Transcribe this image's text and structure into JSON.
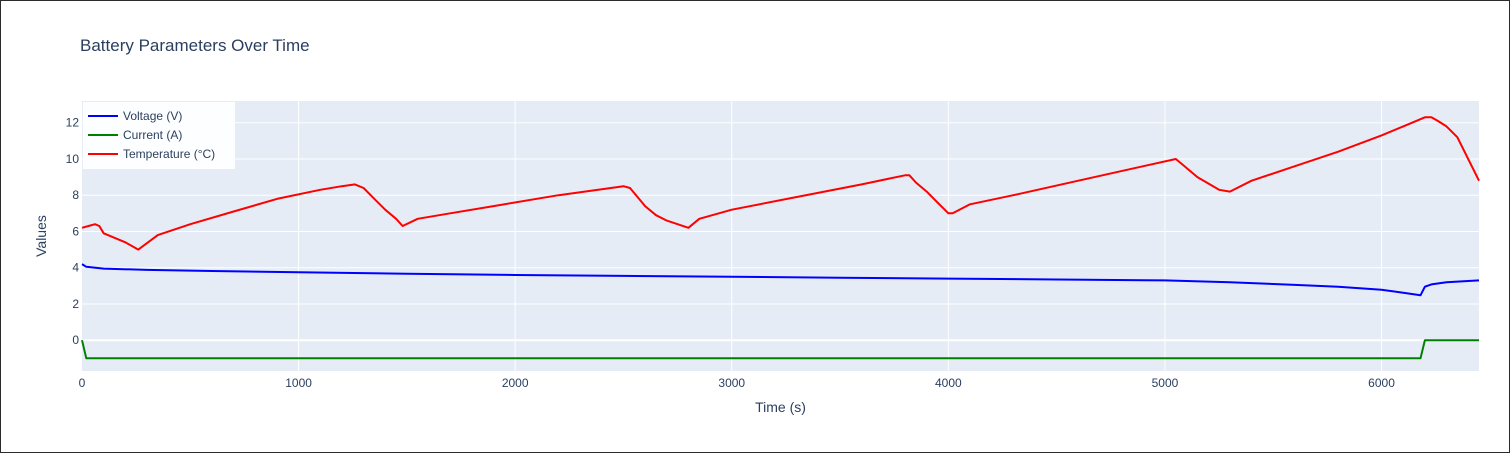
{
  "chart_data": {
    "type": "line",
    "title": "Battery Parameters Over Time",
    "xlabel": "Time (s)",
    "ylabel": "Values",
    "xlim": [
      0,
      6450
    ],
    "ylim": [
      -1.7,
      13.2
    ],
    "x_ticks": [
      0,
      1000,
      2000,
      3000,
      4000,
      5000,
      6000
    ],
    "y_ticks": [
      0,
      2,
      4,
      6,
      8,
      10,
      12
    ],
    "grid": true,
    "legend_position": "top-left",
    "plot_background": "#e5ecf6",
    "series": [
      {
        "name": "Voltage (V)",
        "color": "#0000ff",
        "x": [
          0,
          20,
          100,
          300,
          600,
          1000,
          1500,
          2000,
          2500,
          3000,
          3500,
          4000,
          4500,
          5000,
          5300,
          5600,
          5800,
          6000,
          6100,
          6180,
          6200,
          6230,
          6300,
          6450
        ],
        "y": [
          4.2,
          4.05,
          3.95,
          3.88,
          3.82,
          3.75,
          3.67,
          3.6,
          3.55,
          3.5,
          3.45,
          3.4,
          3.35,
          3.3,
          3.2,
          3.05,
          2.95,
          2.78,
          2.62,
          2.48,
          2.95,
          3.08,
          3.2,
          3.3
        ]
      },
      {
        "name": "Current (A)",
        "color": "#008000",
        "x": [
          0,
          20,
          1500,
          3000,
          4500,
          6000,
          6180,
          6200,
          6450
        ],
        "y": [
          0,
          -1.0,
          -1.0,
          -1.0,
          -1.0,
          -1.0,
          -1.0,
          0,
          0
        ]
      },
      {
        "name": "Temperature (°C)",
        "color": "#ff0000",
        "x": [
          0,
          30,
          60,
          80,
          100,
          200,
          260,
          350,
          500,
          700,
          900,
          1100,
          1200,
          1260,
          1300,
          1350,
          1400,
          1450,
          1480,
          1550,
          1700,
          1900,
          2200,
          2500,
          2530,
          2600,
          2650,
          2700,
          2750,
          2800,
          2850,
          3000,
          3300,
          3600,
          3800,
          3820,
          3850,
          3900,
          3950,
          4000,
          4020,
          4100,
          4300,
          4600,
          4900,
          5050,
          5080,
          5150,
          5250,
          5300,
          5400,
          5600,
          5800,
          6000,
          6100,
          6200,
          6230,
          6260,
          6300,
          6350,
          6450
        ],
        "y": [
          6.2,
          6.3,
          6.4,
          6.3,
          5.9,
          5.4,
          5.0,
          5.8,
          6.4,
          7.1,
          7.8,
          8.3,
          8.5,
          8.6,
          8.4,
          7.8,
          7.2,
          6.7,
          6.3,
          6.7,
          7.0,
          7.4,
          8.0,
          8.5,
          8.4,
          7.4,
          6.9,
          6.6,
          6.4,
          6.2,
          6.7,
          7.2,
          7.9,
          8.6,
          9.1,
          9.1,
          8.7,
          8.2,
          7.6,
          7.0,
          7.0,
          7.5,
          8.0,
          8.8,
          9.6,
          10.0,
          9.7,
          9.0,
          8.3,
          8.2,
          8.8,
          9.6,
          10.4,
          11.3,
          11.8,
          12.3,
          12.3,
          12.1,
          11.8,
          11.2,
          8.8
        ]
      }
    ]
  }
}
